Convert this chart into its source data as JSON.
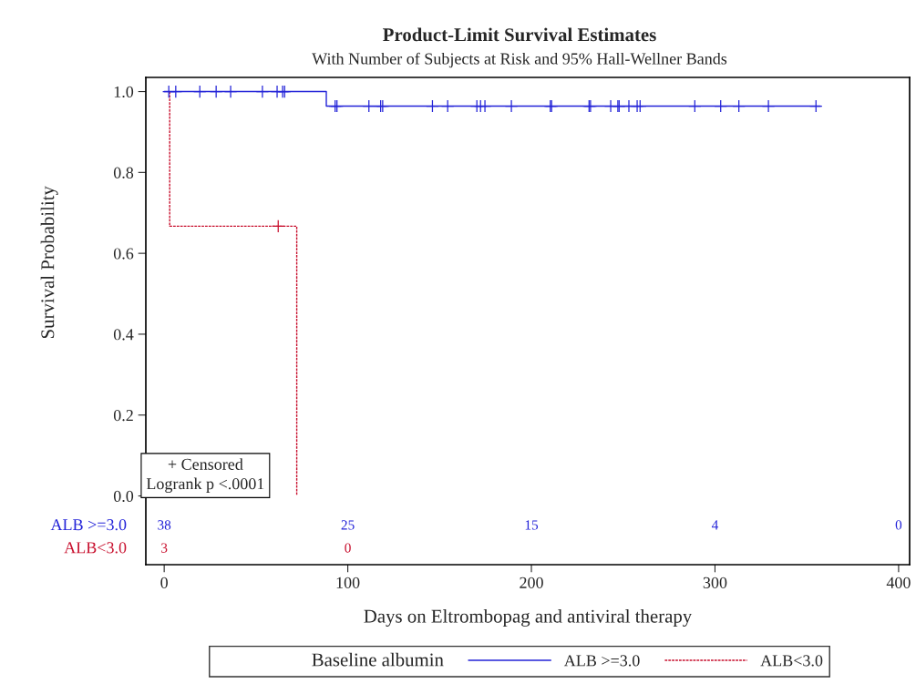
{
  "chart_data": {
    "type": "step",
    "title": "Product-Limit Survival Estimates",
    "subtitle": "With Number of Subjects at Risk and 95% Hall-Wellner Bands",
    "xlabel": "Days on Eltrombopag and antiviral therapy",
    "ylabel": "Survival Probability",
    "legend_title": "Baseline albumin",
    "legend": "bottom",
    "grid": false,
    "xlim": [
      -10,
      406
    ],
    "ylim": [
      -0.17,
      1.035
    ],
    "xticks": [
      0,
      100,
      200,
      300,
      400
    ],
    "yticks": [
      {
        "value": 0,
        "label": "0.0"
      },
      {
        "value": 0.2,
        "label": "0.2"
      },
      {
        "value": 0.4,
        "label": "0.4"
      },
      {
        "value": 0.6,
        "label": "0.6"
      },
      {
        "value": 0.8,
        "label": "0.8"
      },
      {
        "value": 1,
        "label": "1.0"
      }
    ],
    "series": [
      {
        "name": "ALB >=3.0",
        "color": "#2323d8",
        "line_style": "solid",
        "x": [
          0,
          88.3,
          357.4
        ],
        "values": [
          1.0,
          0.964,
          0.964
        ]
      },
      {
        "name": "ALB<3.0",
        "color": "#c8102e",
        "line_style": "dashed",
        "x": [
          3,
          3,
          72.2
        ],
        "values": [
          1.0,
          0.667,
          0.0
        ]
      },
      {
        "type": "scatter",
        "marker": "cross",
        "color": "#2323d8",
        "x": [
          2.5,
          6.3,
          19.4,
          28.3,
          36.2,
          53.5,
          61.5,
          64.5,
          65.6,
          93.1,
          94.1,
          111.5,
          117.9,
          119,
          146.1,
          154.4,
          170.3,
          172.3,
          174.7,
          189.1,
          210.3,
          211,
          231.4,
          232.2,
          243.2,
          247.1,
          247.8,
          253.1,
          257.6,
          259.2,
          289,
          303.1,
          313,
          329.1,
          355
        ],
        "values": [
          1,
          1,
          1,
          1,
          1,
          1,
          1,
          1,
          1,
          0.964,
          0.964,
          0.964,
          0.964,
          0.964,
          0.964,
          0.964,
          0.964,
          0.964,
          0.964,
          0.964,
          0.964,
          0.964,
          0.964,
          0.964,
          0.964,
          0.964,
          0.964,
          0.964,
          0.964,
          0.964,
          0.964,
          0.964,
          0.964,
          0.964,
          0.964
        ]
      },
      {
        "type": "scatter",
        "marker": "cross",
        "color": "#c8102e",
        "x": [
          62.1
        ],
        "values": [
          0.667
        ]
      }
    ],
    "annotations": [
      "+ Censored\nLogrank p <.0001",
      "38",
      "25",
      "15",
      "4",
      "0",
      "3",
      "0"
    ]
  }
}
